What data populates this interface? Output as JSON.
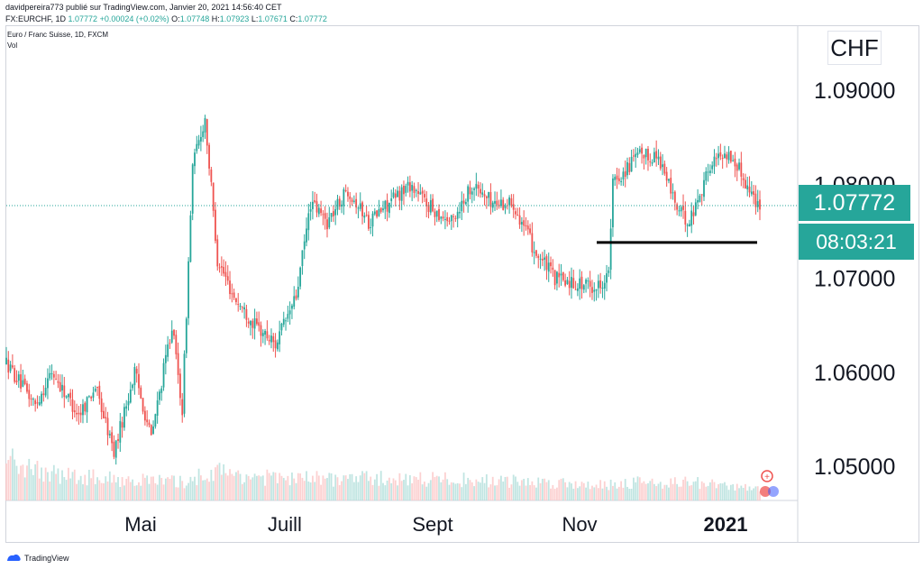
{
  "header": {
    "line1": "davidpereira773 publié sur TradingView.com, Janvier 20, 2021 14:56:40 CET",
    "symbol": "FX:EURCHF, 1D",
    "last": "1.07772",
    "change": "+0.00024 (+0.02%)",
    "o_label": "O:",
    "o": "1.07748",
    "h_label": "H:",
    "h": "1.07923",
    "l_label": "L:",
    "l": "1.07671",
    "c_label": "C:",
    "c": "1.07772"
  },
  "legend": {
    "title": "Euro / Franc Suisse, 1D, FXCM",
    "vol": "Vol"
  },
  "currency": "CHF",
  "last_price_label": "1.07772",
  "countdown": "08:03:21",
  "footer": {
    "brand": "TradingView",
    "logo_icon": "tradingview-logo-icon"
  },
  "colors": {
    "up": "#26a69a",
    "down": "#ef5350",
    "support_line": "#000000",
    "price_line": "#26a69a"
  },
  "chart_data": {
    "type": "candlestick",
    "symbol": "EURCHF",
    "timeframe": "1D",
    "y_axis": {
      "ticks": [
        "1.09000",
        "1.08000",
        "1.07000",
        "1.06000",
        "1.05000"
      ],
      "range": [
        1.0458,
        1.0957
      ]
    },
    "x_axis": {
      "ticks": [
        "Mai",
        "Juill",
        "Sept",
        "Nov",
        "2021"
      ],
      "bold": "2021"
    },
    "last_price": 1.07772,
    "support_level": {
      "value": 1.0738,
      "from": "Nov",
      "to": "2021"
    },
    "anchors": [
      [
        0,
        1.061
      ],
      [
        14,
        1.0565
      ],
      [
        22,
        1.06
      ],
      [
        35,
        1.0555
      ],
      [
        43,
        1.0585
      ],
      [
        52,
        1.0515
      ],
      [
        62,
        1.06
      ],
      [
        70,
        1.053
      ],
      [
        80,
        1.065
      ],
      [
        85,
        1.056
      ],
      [
        90,
        1.082
      ],
      [
        96,
        1.087
      ],
      [
        102,
        1.072
      ],
      [
        110,
        1.068
      ],
      [
        120,
        1.065
      ],
      [
        130,
        1.063
      ],
      [
        140,
        1.068
      ],
      [
        147,
        1.078
      ],
      [
        155,
        1.076
      ],
      [
        165,
        1.0795
      ],
      [
        175,
        1.076
      ],
      [
        185,
        1.078
      ],
      [
        195,
        1.08
      ],
      [
        205,
        1.0775
      ],
      [
        215,
        1.076
      ],
      [
        225,
        1.08
      ],
      [
        235,
        1.078
      ],
      [
        245,
        1.078
      ],
      [
        255,
        1.073
      ],
      [
        265,
        1.07
      ],
      [
        275,
        1.0695
      ],
      [
        285,
        1.069
      ],
      [
        291,
        1.0705
      ],
      [
        293,
        1.08
      ],
      [
        305,
        1.083
      ],
      [
        315,
        1.083
      ],
      [
        325,
        1.077
      ],
      [
        330,
        1.076
      ],
      [
        340,
        1.082
      ],
      [
        347,
        1.0835
      ],
      [
        353,
        1.082
      ],
      [
        360,
        1.079
      ],
      [
        364,
        1.0777
      ]
    ],
    "volume_profile": [
      [
        0,
        0.55
      ],
      [
        25,
        0.35
      ],
      [
        50,
        0.3
      ],
      [
        85,
        0.25
      ],
      [
        100,
        0.4
      ],
      [
        130,
        0.3
      ],
      [
        200,
        0.3
      ],
      [
        260,
        0.25
      ],
      [
        290,
        0.22
      ],
      [
        300,
        0.25
      ],
      [
        330,
        0.25
      ],
      [
        364,
        0.15
      ]
    ]
  }
}
